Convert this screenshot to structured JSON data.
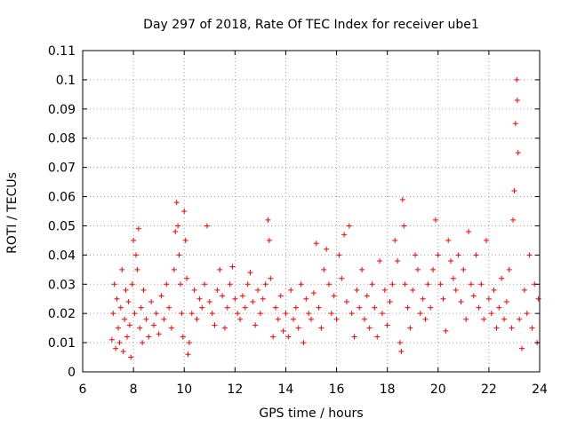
{
  "chart_data": {
    "type": "scatter",
    "title": "Day 297 of 2018, Rate Of TEC Index for receiver ube1",
    "xlabel": "GPS time / hours",
    "ylabel": "ROTI / TECUs",
    "xlim": [
      6,
      24
    ],
    "ylim": [
      0,
      0.11
    ],
    "xticks": [
      "6",
      "8",
      "10",
      "12",
      "14",
      "16",
      "18",
      "20",
      "22",
      "24"
    ],
    "yticks": [
      "0",
      "0.01",
      "0.02",
      "0.03",
      "0.04",
      "0.05",
      "0.06",
      "0.07",
      "0.08",
      "0.09",
      "0.1",
      "0.11"
    ],
    "grid": true,
    "marker": "+",
    "color": "#ff0000",
    "series": [
      {
        "points": [
          [
            7.15,
            0.011
          ],
          [
            7.2,
            0.02
          ],
          [
            7.25,
            0.03
          ],
          [
            7.3,
            0.008
          ],
          [
            7.35,
            0.025
          ],
          [
            7.4,
            0.015
          ],
          [
            7.45,
            0.01
          ],
          [
            7.5,
            0.022
          ],
          [
            7.55,
            0.035
          ],
          [
            7.6,
            0.007
          ],
          [
            7.65,
            0.018
          ],
          [
            7.7,
            0.028
          ],
          [
            7.75,
            0.012
          ],
          [
            7.8,
            0.024
          ],
          [
            7.85,
            0.016
          ],
          [
            7.9,
            0.005
          ],
          [
            7.95,
            0.03
          ],
          [
            8.0,
            0.045
          ],
          [
            8.05,
            0.02
          ],
          [
            8.1,
            0.04
          ],
          [
            8.15,
            0.035
          ],
          [
            8.2,
            0.049
          ],
          [
            8.25,
            0.015
          ],
          [
            8.3,
            0.022
          ],
          [
            8.35,
            0.01
          ],
          [
            8.4,
            0.028
          ],
          [
            8.5,
            0.018
          ],
          [
            8.6,
            0.012
          ],
          [
            8.7,
            0.024
          ],
          [
            8.8,
            0.016
          ],
          [
            8.9,
            0.02
          ],
          [
            9.0,
            0.013
          ],
          [
            9.1,
            0.026
          ],
          [
            9.2,
            0.018
          ],
          [
            9.3,
            0.03
          ],
          [
            9.4,
            0.022
          ],
          [
            9.5,
            0.015
          ],
          [
            9.6,
            0.035
          ],
          [
            9.65,
            0.048
          ],
          [
            9.7,
            0.058
          ],
          [
            9.75,
            0.05
          ],
          [
            9.8,
            0.04
          ],
          [
            9.85,
            0.03
          ],
          [
            9.9,
            0.02
          ],
          [
            9.95,
            0.012
          ],
          [
            10.0,
            0.055
          ],
          [
            10.05,
            0.045
          ],
          [
            10.1,
            0.032
          ],
          [
            10.15,
            0.006
          ],
          [
            10.2,
            0.01
          ],
          [
            10.3,
            0.02
          ],
          [
            10.4,
            0.028
          ],
          [
            10.5,
            0.018
          ],
          [
            10.6,
            0.025
          ],
          [
            10.7,
            0.022
          ],
          [
            10.8,
            0.03
          ],
          [
            10.9,
            0.05
          ],
          [
            11.0,
            0.024
          ],
          [
            11.1,
            0.02
          ],
          [
            11.2,
            0.016
          ],
          [
            11.3,
            0.028
          ],
          [
            11.4,
            0.035
          ],
          [
            11.5,
            0.026
          ],
          [
            11.6,
            0.015
          ],
          [
            11.7,
            0.022
          ],
          [
            11.8,
            0.03
          ],
          [
            11.9,
            0.036
          ],
          [
            12.0,
            0.025
          ],
          [
            12.1,
            0.02
          ],
          [
            12.2,
            0.018
          ],
          [
            12.3,
            0.026
          ],
          [
            12.4,
            0.022
          ],
          [
            12.5,
            0.03
          ],
          [
            12.6,
            0.034
          ],
          [
            12.7,
            0.024
          ],
          [
            12.8,
            0.016
          ],
          [
            12.9,
            0.028
          ],
          [
            13.0,
            0.02
          ],
          [
            13.1,
            0.025
          ],
          [
            13.2,
            0.03
          ],
          [
            13.3,
            0.052
          ],
          [
            13.35,
            0.045
          ],
          [
            13.4,
            0.032
          ],
          [
            13.5,
            0.012
          ],
          [
            13.6,
            0.022
          ],
          [
            13.7,
            0.018
          ],
          [
            13.8,
            0.026
          ],
          [
            13.9,
            0.014
          ],
          [
            14.0,
            0.02
          ],
          [
            14.1,
            0.012
          ],
          [
            14.2,
            0.028
          ],
          [
            14.3,
            0.018
          ],
          [
            14.4,
            0.022
          ],
          [
            14.5,
            0.015
          ],
          [
            14.6,
            0.03
          ],
          [
            14.7,
            0.01
          ],
          [
            14.8,
            0.025
          ],
          [
            14.9,
            0.02
          ],
          [
            15.0,
            0.018
          ],
          [
            15.1,
            0.027
          ],
          [
            15.2,
            0.044
          ],
          [
            15.3,
            0.022
          ],
          [
            15.4,
            0.015
          ],
          [
            15.5,
            0.035
          ],
          [
            15.6,
            0.042
          ],
          [
            15.7,
            0.03
          ],
          [
            15.8,
            0.02
          ],
          [
            15.9,
            0.026
          ],
          [
            16.0,
            0.018
          ],
          [
            16.1,
            0.04
          ],
          [
            16.2,
            0.032
          ],
          [
            16.3,
            0.047
          ],
          [
            16.4,
            0.024
          ],
          [
            16.5,
            0.05
          ],
          [
            16.6,
            0.02
          ],
          [
            16.7,
            0.012
          ],
          [
            16.8,
            0.028
          ],
          [
            16.9,
            0.022
          ],
          [
            17.0,
            0.035
          ],
          [
            17.1,
            0.018
          ],
          [
            17.2,
            0.026
          ],
          [
            17.3,
            0.015
          ],
          [
            17.4,
            0.03
          ],
          [
            17.5,
            0.022
          ],
          [
            17.6,
            0.012
          ],
          [
            17.7,
            0.038
          ],
          [
            17.8,
            0.02
          ],
          [
            17.9,
            0.028
          ],
          [
            18.0,
            0.016
          ],
          [
            18.1,
            0.024
          ],
          [
            18.2,
            0.03
          ],
          [
            18.3,
            0.045
          ],
          [
            18.4,
            0.038
          ],
          [
            18.5,
            0.01
          ],
          [
            18.55,
            0.007
          ],
          [
            18.6,
            0.059
          ],
          [
            18.65,
            0.05
          ],
          [
            18.7,
            0.03
          ],
          [
            18.8,
            0.022
          ],
          [
            18.9,
            0.015
          ],
          [
            19.0,
            0.028
          ],
          [
            19.1,
            0.04
          ],
          [
            19.2,
            0.035
          ],
          [
            19.3,
            0.02
          ],
          [
            19.4,
            0.025
          ],
          [
            19.5,
            0.018
          ],
          [
            19.6,
            0.03
          ],
          [
            19.7,
            0.022
          ],
          [
            19.8,
            0.035
          ],
          [
            19.9,
            0.052
          ],
          [
            20.0,
            0.04
          ],
          [
            20.1,
            0.03
          ],
          [
            20.2,
            0.025
          ],
          [
            20.3,
            0.014
          ],
          [
            20.4,
            0.045
          ],
          [
            20.5,
            0.038
          ],
          [
            20.6,
            0.032
          ],
          [
            20.7,
            0.028
          ],
          [
            20.8,
            0.04
          ],
          [
            20.9,
            0.024
          ],
          [
            21.0,
            0.035
          ],
          [
            21.1,
            0.018
          ],
          [
            21.2,
            0.048
          ],
          [
            21.3,
            0.03
          ],
          [
            21.4,
            0.026
          ],
          [
            21.5,
            0.04
          ],
          [
            21.6,
            0.022
          ],
          [
            21.7,
            0.03
          ],
          [
            21.8,
            0.018
          ],
          [
            21.9,
            0.045
          ],
          [
            22.0,
            0.025
          ],
          [
            22.1,
            0.02
          ],
          [
            22.2,
            0.028
          ],
          [
            22.3,
            0.015
          ],
          [
            22.4,
            0.022
          ],
          [
            22.5,
            0.032
          ],
          [
            22.6,
            0.018
          ],
          [
            22.7,
            0.024
          ],
          [
            22.8,
            0.035
          ],
          [
            22.9,
            0.015
          ],
          [
            22.95,
            0.052
          ],
          [
            23.0,
            0.062
          ],
          [
            23.05,
            0.085
          ],
          [
            23.1,
            0.1
          ],
          [
            23.12,
            0.093
          ],
          [
            23.15,
            0.075
          ],
          [
            23.2,
            0.018
          ],
          [
            23.3,
            0.008
          ],
          [
            23.4,
            0.028
          ],
          [
            23.5,
            0.02
          ],
          [
            23.6,
            0.04
          ],
          [
            23.7,
            0.015
          ],
          [
            23.8,
            0.03
          ],
          [
            23.9,
            0.01
          ],
          [
            23.95,
            0.025
          ]
        ]
      }
    ]
  }
}
